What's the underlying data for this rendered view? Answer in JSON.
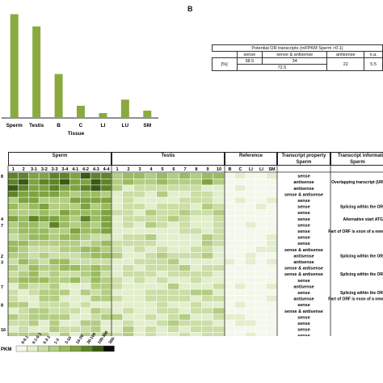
{
  "panel_b_label": "B",
  "bar_chart": {
    "chart_data": {
      "type": "bar",
      "categories": [
        "Sperm",
        "Testis",
        "B",
        "C",
        "LI",
        "LU",
        "SM"
      ],
      "values": [
        85,
        75,
        36,
        10,
        4,
        15,
        6
      ],
      "xlabel": "Tissue",
      "ylabel": "",
      "ylim": [
        0,
        90
      ],
      "color": "#8aaa3f"
    }
  },
  "or_table": {
    "title": "Potential OR transcripts  (mFPKM Sperm >0.1)",
    "headers": [
      "sense",
      "sense & antisense",
      "antisense",
      "n.a."
    ],
    "row_label": "[%]",
    "values": [
      "38.5",
      "34",
      "22",
      "5.5"
    ],
    "combined": "72.5"
  },
  "heatmap": {
    "group_headers": {
      "sperm": "Sperm",
      "testis": "Testis",
      "reference": "Reference",
      "transcript_property": "Transcript property",
      "transcript_info": "Transcript informati"
    },
    "sperm_cols": [
      "1",
      "2",
      "3-1",
      "3-2",
      "3-3",
      "3-4",
      "4-1",
      "4-2",
      "4-3",
      "4-4"
    ],
    "testis_cols": [
      "1",
      "2",
      "3",
      "4",
      "5",
      "6",
      "7",
      "8",
      "9",
      "10"
    ],
    "reference_cols": [
      "B",
      "C",
      "LI",
      "LI",
      "SM"
    ],
    "subheaders": {
      "property": "Sperm",
      "info": "Sperm"
    },
    "properties": [
      "sense",
      "antisense",
      "antisense",
      "sense & antisense",
      "sense",
      "sense",
      "sense",
      "sense",
      "sense",
      "sense",
      "sense",
      "sense",
      "sense & antisense",
      "antisense",
      "antisense",
      "sense & antisense",
      "sense & antisense",
      "sense",
      "antisense",
      "sense",
      "antisense",
      "sense",
      "sense & antisense",
      "sense",
      "sense",
      "sense",
      "sense"
    ],
    "info": [
      "",
      "Overlapping transcript (UR",
      "",
      "",
      "",
      "Splicing within the OR",
      "",
      "Alternative start ATG",
      "",
      "Part of ORF is exon of a new",
      "",
      "",
      "",
      "Splicing within the OR",
      "",
      "",
      "Splicing within the OR",
      "",
      "",
      "Splicing within the OR",
      "Part of ORF is exon of a new",
      "",
      "",
      "",
      "",
      "",
      ""
    ],
    "left_markers": [
      "8",
      "4",
      "7",
      "2",
      "3",
      "7",
      "8",
      "16"
    ]
  },
  "legend": {
    "unit": "PKM",
    "bins": [
      "0-0.1",
      "0.1-0.3",
      "0.3-1",
      "1-3",
      "3-10",
      "10-30",
      "30-100",
      "100-300",
      "300-"
    ],
    "colors": [
      "#f4f8ec",
      "#e3eecc",
      "#cbdea6",
      "#b3cd82",
      "#9abc5f",
      "#7ea340",
      "#5e8428",
      "#3a5a14",
      "#0a0f04"
    ]
  }
}
